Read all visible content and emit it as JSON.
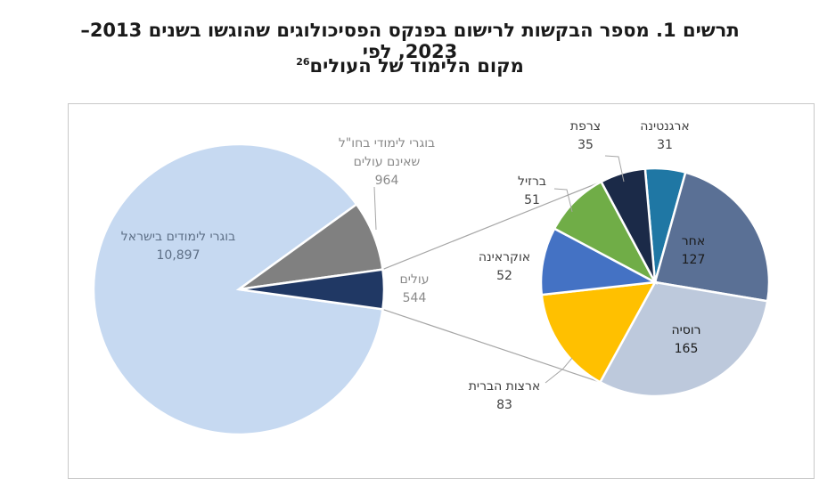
{
  "title": {
    "line1": "תרשים 1. מספר הבקשות לרישום בפנקס הפסיכולוגים שהוגשו בשנים 2013–2023, לפי",
    "line2": "מקום הלימוד של העולים",
    "footnote": "26"
  },
  "chart_data": [
    {
      "type": "pie",
      "slices": [
        {
          "label": [
            "בוגרי לימודים בישראל"
          ],
          "value": 10897,
          "value_text": "10,897",
          "color": "#c6d9f1"
        },
        {
          "label": [
            "בוגרי לימודי בחו\"ל",
            "שאינם עולים"
          ],
          "value": 964,
          "value_text": "964",
          "color": "#808080"
        },
        {
          "label": [
            "עולים"
          ],
          "value": 544,
          "value_text": "544",
          "color": "#203864"
        }
      ]
    },
    {
      "type": "pie",
      "slices": [
        {
          "label": [
            "ארגנטינה"
          ],
          "value": 31,
          "value_text": "31",
          "color": "#1f77a4"
        },
        {
          "label": [
            "אחר"
          ],
          "value": 127,
          "value_text": "127",
          "color": "#5a7095"
        },
        {
          "label": [
            "רוסיה"
          ],
          "value": 165,
          "value_text": "165",
          "color": "#bdc9dc"
        },
        {
          "label": [
            "ארצות הברית"
          ],
          "value": 83,
          "value_text": "83",
          "color": "#ffc000"
        },
        {
          "label": [
            "אוקראינה"
          ],
          "value": 52,
          "value_text": "52",
          "color": "#4472c4"
        },
        {
          "label": [
            "ברזיל"
          ],
          "value": 51,
          "value_text": "51",
          "color": "#70ad47"
        },
        {
          "label": [
            "צרפת"
          ],
          "value": 35,
          "value_text": "35",
          "color": "#1b2a48"
        }
      ]
    }
  ]
}
